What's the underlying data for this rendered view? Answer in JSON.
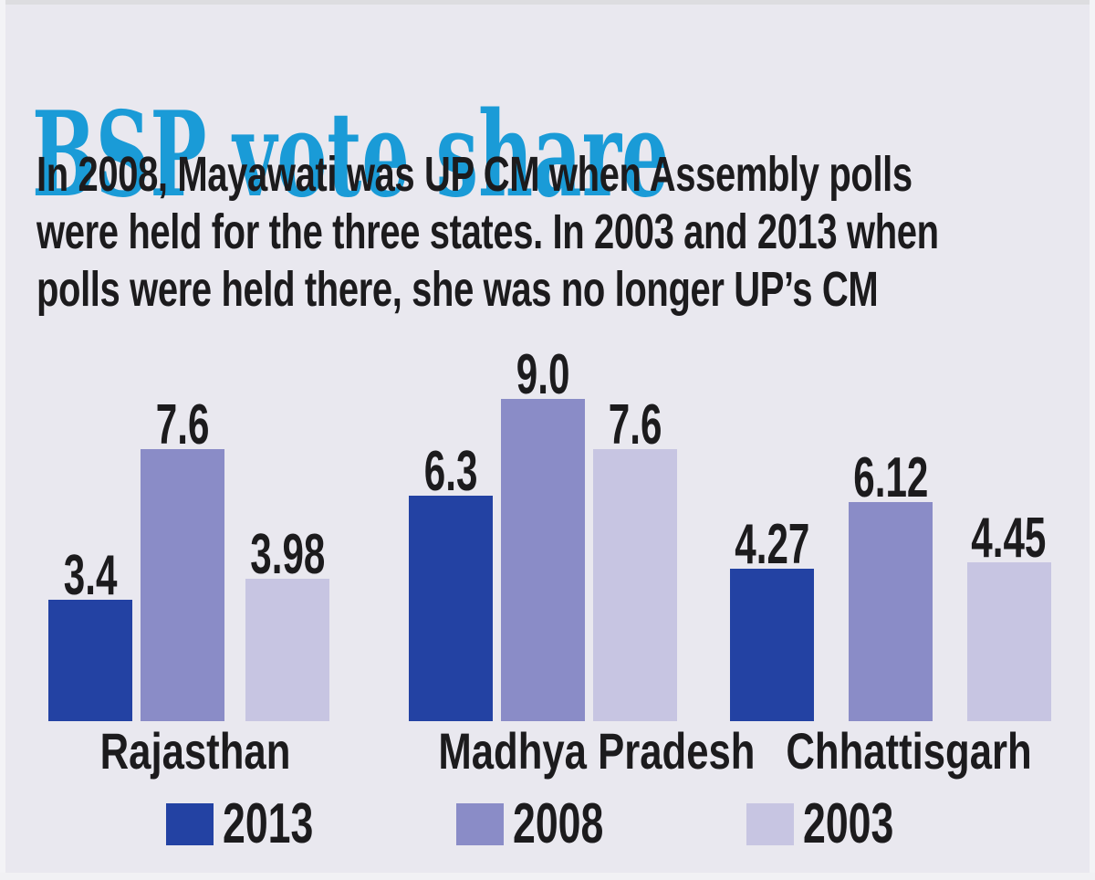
{
  "page": {
    "title": "BSP vote share",
    "subtitle_lines": [
      "In 2008, Mayawati was UP CM when Assembly polls",
      "were held for the three states. In 2003 and 2013 when",
      "polls were held there, she was no longer UP’s CM"
    ]
  },
  "colors": {
    "background": "#e9e8ef",
    "title": "#1a9bd7",
    "text": "#1c1b1d",
    "series_2013": "#2342a3",
    "series_2008": "#8a8cc7",
    "series_2003": "#c7c5e2"
  },
  "chart_data": {
    "type": "bar",
    "title": "BSP vote share",
    "subtitle": "In 2008, Mayawati was UP CM when Assembly polls were held for the three states. In 2003 and 2013 when polls were held there, she was no longer UP’s CM",
    "categories": [
      "Rajasthan",
      "Madhya Pradesh",
      "Chhattisgarh"
    ],
    "series": [
      {
        "name": "2013",
        "color": "#2342a3",
        "values": [
          3.4,
          6.3,
          4.27
        ],
        "labels": [
          "3.4",
          "6.3",
          "4.27"
        ]
      },
      {
        "name": "2008",
        "color": "#8a8cc7",
        "values": [
          7.6,
          9.0,
          6.12
        ],
        "labels": [
          "7.6",
          "9.0",
          "6.12"
        ]
      },
      {
        "name": "2003",
        "color": "#c7c5e2",
        "values": [
          3.98,
          7.6,
          4.45
        ],
        "labels": [
          "3.98",
          "7.6",
          "4.45"
        ]
      }
    ],
    "xlabel": "",
    "ylabel": "",
    "ylim": [
      0,
      9.5
    ],
    "grid": false,
    "axes_shown": false,
    "value_labels_shown": true,
    "legend_position": "bottom"
  }
}
